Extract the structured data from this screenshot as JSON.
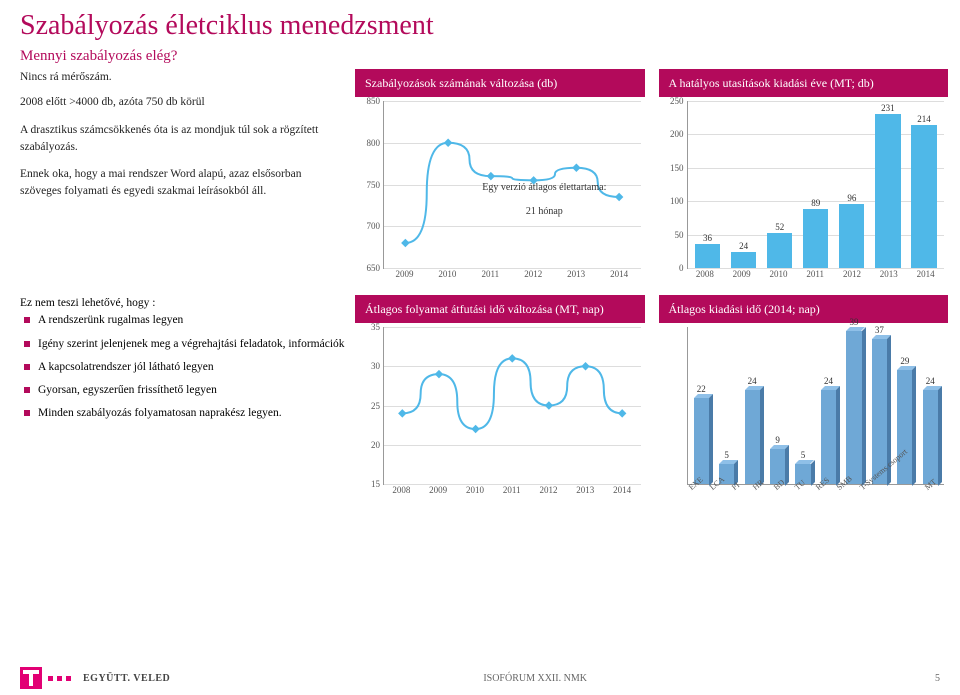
{
  "title": "Szabályozás életciklus menedzsment",
  "subtitle": "Mennyi szabályozás elég?",
  "left_text": {
    "p1": "Nincs rá mérőszám.",
    "p2": "2008 előtt >4000 db, azóta 750 db körül",
    "p3": "A drasztikus számcsökkenés óta is az mondjuk túl sok a rögzített szabályozás.",
    "p4": "Ennek oka, hogy a mai rendszer Word alapú, azaz elsősorban szöveges folyamati és egyedi szakmai leírásokból áll."
  },
  "lower_left": {
    "intro": "Ez nem teszi lehetővé, hogy :",
    "b1": "A rendszerünk rugalmas legyen",
    "b2": "Igény szerint jelenjenek meg a végrehajtási feladatok, információk",
    "b3": "A kapcsolatrendszer jól látható legyen",
    "b4": "Gyorsan, egyszerűen frissíthető legyen",
    "b5": "Minden szabályozás folyamatosan naprakész legyen."
  },
  "chart1": {
    "title": "Szabályozások számának változása (db)",
    "ylim": [
      650,
      850
    ],
    "yticks": [
      650,
      700,
      750,
      800,
      850
    ],
    "xlabels": [
      "2009",
      "2010",
      "2011",
      "2012",
      "2013",
      "2014"
    ],
    "values": [
      680,
      800,
      760,
      755,
      770,
      735
    ],
    "line_color": "#4fb8e8",
    "marker_color": "#4fb8e8",
    "annot1": "Egy verzió átlagos élettartama:",
    "annot2": "21 hónap"
  },
  "chart2": {
    "title": "A hatályos utasítások kiadási éve (MT; db)",
    "ylim": [
      0,
      250
    ],
    "yticks": [
      0,
      50,
      100,
      150,
      200,
      250
    ],
    "xlabels": [
      "2008",
      "2009",
      "2010",
      "2011",
      "2012",
      "2013",
      "2014"
    ],
    "values": [
      36,
      24,
      52,
      89,
      96,
      231,
      214
    ],
    "bar_color": "#4fb8e8"
  },
  "chart3": {
    "title": "Átlagos folyamat átfutási idő változása (MT, nap)",
    "ylim": [
      15,
      35
    ],
    "yticks": [
      15,
      20,
      25,
      30,
      35
    ],
    "xlabels": [
      "2008",
      "2009",
      "2010",
      "2011",
      "2012",
      "2013",
      "2014"
    ],
    "values": [
      24,
      29,
      22,
      31,
      25,
      30,
      24
    ],
    "line_color": "#4fb8e8"
  },
  "chart4": {
    "title": "Átlagos kiadási idő (2014; nap)",
    "ylim": [
      0,
      40
    ],
    "xlabels": [
      "EXE",
      "LCA",
      "FI",
      "HR",
      "BD",
      "TU",
      "RES",
      "SMB",
      "T-Systems csoport",
      "MT"
    ],
    "values": [
      22,
      5,
      24,
      9,
      5,
      24,
      39,
      37,
      29,
      24
    ],
    "bar_color": "#6fa8d6"
  },
  "footer": {
    "tagline": "EGYÜTT. VELED",
    "center": "ISOFÓRUM XXII. NMK",
    "page": "5"
  },
  "colors": {
    "brand": "#b30a5b",
    "telekom": "#e20074",
    "chart_blue": "#4fb8e8"
  }
}
